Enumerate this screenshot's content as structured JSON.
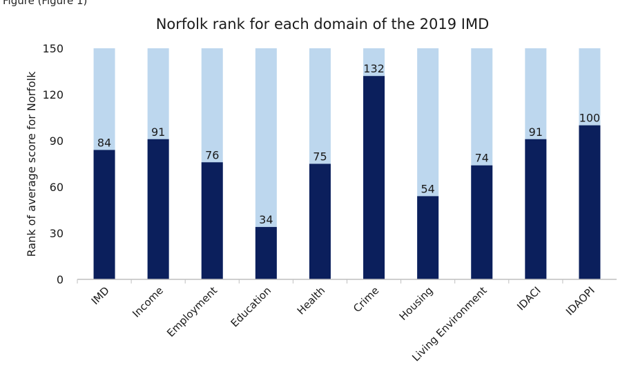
{
  "caption": "Figure (Figure 1)",
  "chart_data": {
    "type": "bar",
    "title": "Norfolk rank for each domain of the 2019 IMD",
    "xlabel": "",
    "ylabel": "Rank of average score for Norfolk",
    "ylim": [
      0,
      150
    ],
    "yticks": [
      0,
      30,
      60,
      90,
      120,
      150
    ],
    "categories": [
      "IMD",
      "Income",
      "Employment",
      "Education",
      "Health",
      "Crime",
      "Housing",
      "Living Environment",
      "IDACI",
      "IDAOPI"
    ],
    "values": [
      84,
      91,
      76,
      34,
      75,
      132,
      54,
      74,
      91,
      100
    ],
    "background_value": 150,
    "colors": {
      "bar": "#0b1f5c",
      "background_bar": "#bdd7ee",
      "axis": "#bfbfbf"
    },
    "grid": false,
    "legend": "none"
  }
}
